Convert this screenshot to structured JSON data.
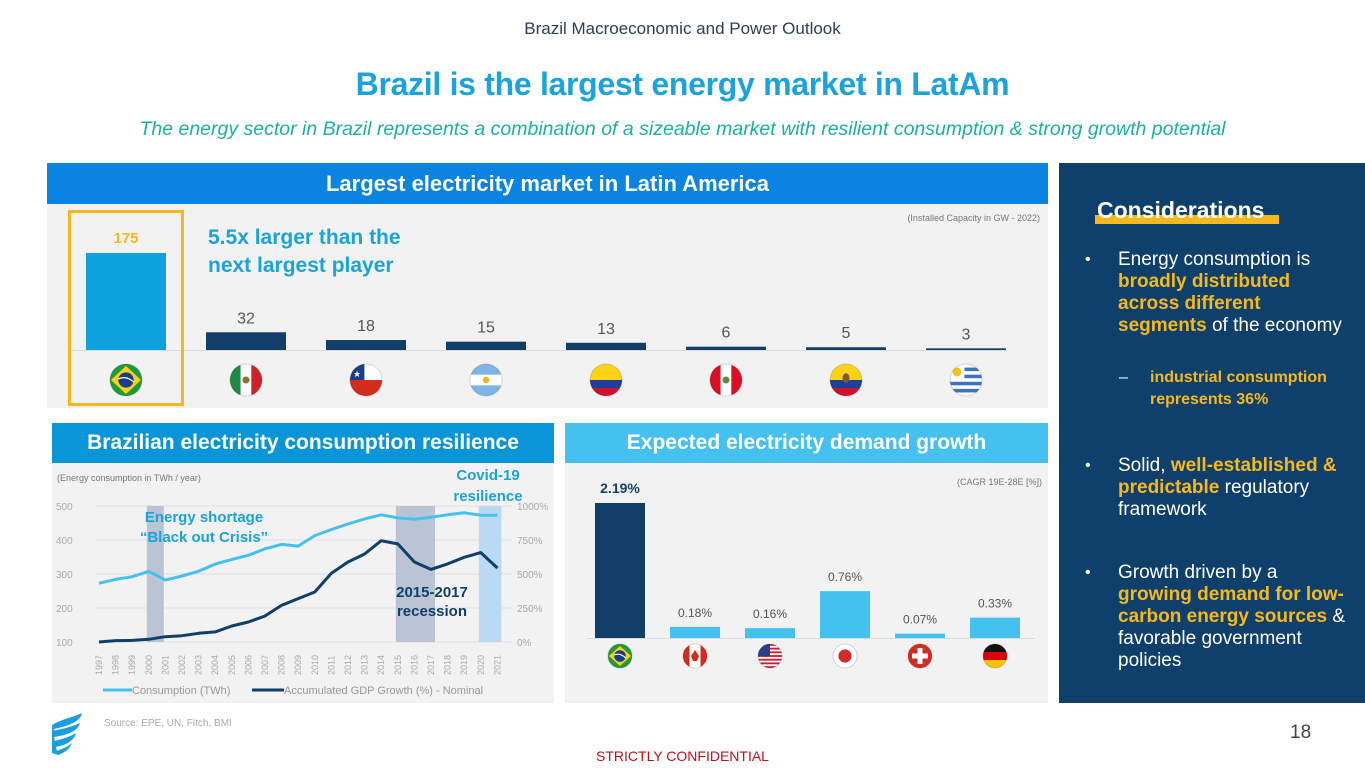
{
  "header": {
    "section": "Brazil Macroeconomic and Power Outlook",
    "title": "Brazil is the largest energy market in LatAm",
    "subtitle": "The energy sector in Brazil represents a combination of a sizeable market with resilient consumption & strong growth potential"
  },
  "colors": {
    "light_blue": "#1aa3dc",
    "dark_navy": "#0f3f6b",
    "accent_yellow": "#f7b81d",
    "bar_light": "#45c1f0",
    "bar_brazil_capacity": "#0ea1e0",
    "confidential_red": "#c0101a"
  },
  "panel_capacity": {
    "heading": "Largest electricity market in Latin America",
    "note": "(Installed Capacity in GW - 2022)",
    "claim_line1": "5.5x larger than the",
    "claim_line2": "next largest player"
  },
  "panel_consumption": {
    "heading": "Brazilian electricity consumption resilience",
    "note": "(Energy consumption in TWh / year)",
    "annot_shortage_1": "Energy shortage",
    "annot_shortage_2": "“Black out Crisis”",
    "annot_covid_1": "Covid-19",
    "annot_covid_2": "resilience",
    "annot_recession_1": "2015-2017",
    "annot_recession_2": "recession",
    "legend_consumption": "Consumption (TWh)",
    "legend_gdp": "Accumulated GDP Growth (%) - Nominal"
  },
  "panel_demand": {
    "heading": "Expected electricity demand growth",
    "note": "(CAGR 19E-28E [%])"
  },
  "considerations": {
    "title": "Considerations",
    "b1_plain1": "Energy consumption is ",
    "b1_hl": "broadly distributed across different segments",
    "b1_plain2": " of the economy",
    "sub1": "industrial consumption represents 36%",
    "b2_plain1": "Solid, ",
    "b2_hl": "well-established & predictable",
    "b2_plain2": " regulatory framework",
    "b3_plain1": "Growth driven by a ",
    "b3_hl": "growing demand for low-carbon energy sources",
    "b3_plain2": " & favorable government policies"
  },
  "footer": {
    "source": "Source: EPE, UN, Fitch, BMI",
    "page": "18",
    "confidential": "STRICTLY CONFIDENTIAL"
  },
  "chart_data": [
    {
      "type": "bar",
      "title": "Largest electricity market in Latin America",
      "ylabel": "Installed Capacity in GW - 2022",
      "categories": [
        "Brazil",
        "Mexico",
        "Chile",
        "Argentina",
        "Colombia",
        "Peru",
        "Ecuador",
        "Uruguay"
      ],
      "values": [
        175,
        32,
        18,
        15,
        13,
        6,
        5,
        3
      ],
      "labels": [
        "175",
        "32",
        "18",
        "15",
        "13",
        "6",
        "5",
        "3"
      ],
      "highlight": "Brazil",
      "flags": [
        "flag-brazil-icon",
        "flag-mexico-icon",
        "flag-chile-icon",
        "flag-argentina-icon",
        "flag-colombia-icon",
        "flag-peru-icon",
        "flag-ecuador-icon",
        "flag-uruguay-icon"
      ],
      "ylim": [
        0,
        175
      ]
    },
    {
      "type": "line",
      "title": "Brazilian electricity consumption resilience",
      "xlabel": "",
      "ylabel": "Energy consumption in TWh / year",
      "x": [
        "1997",
        "1998",
        "1999",
        "2000",
        "2001",
        "2002",
        "2003",
        "2004",
        "2005",
        "2006",
        "2007",
        "2008",
        "2009",
        "2010",
        "2011",
        "2012",
        "2013",
        "2014",
        "2015",
        "2016",
        "2017",
        "2018",
        "2019",
        "2020",
        "2021"
      ],
      "y_ticks": [
        "500",
        "400",
        "300",
        "200",
        "100"
      ],
      "y_ticks_values": [
        500,
        400,
        300,
        200,
        100
      ],
      "y2_ticks": [
        "1000%",
        "750%",
        "500%",
        "250%",
        "0%"
      ],
      "y2_ticks_values": [
        1000,
        750,
        500,
        250,
        0
      ],
      "ylim": [
        100,
        500
      ],
      "y2lim": [
        0,
        1000
      ],
      "series": [
        {
          "name": "Consumption (TWh)",
          "axis": "left",
          "color": "#45c1f0",
          "values": [
            273,
            284,
            292,
            308,
            282,
            294,
            308,
            329,
            343,
            355,
            374,
            387,
            382,
            413,
            431,
            447,
            462,
            474,
            465,
            461,
            467,
            474,
            480,
            473,
            473
          ]
        },
        {
          "name": "Accumulated GDP Growth (%) - Nominal",
          "axis": "right",
          "color": "#0f3f6b",
          "values": [
            0,
            10,
            12,
            20,
            39,
            46,
            64,
            74,
            118,
            147,
            191,
            270,
            319,
            368,
            505,
            588,
            647,
            745,
            721,
            588,
            534,
            574,
            623,
            657,
            544
          ]
        }
      ],
      "shaded_periods": [
        {
          "label": "Energy shortage “Black out Crisis”",
          "from": "2000",
          "to": "2001",
          "color": "#b4bfd2"
        },
        {
          "label": "2015-2017 recession",
          "from": "2015",
          "to": "2017",
          "color": "#b4bfd2"
        },
        {
          "label": "Covid-19 resilience",
          "from": "2020",
          "to": "2021",
          "color": "#b6d8f2"
        }
      ],
      "legend": "bottom",
      "grid": true
    },
    {
      "type": "bar",
      "title": "Expected electricity demand growth",
      "ylabel": "CAGR 19E-28E [%]",
      "categories": [
        "Brazil",
        "Canada",
        "United States",
        "Japan",
        "Switzerland",
        "Germany"
      ],
      "values": [
        2.19,
        0.18,
        0.16,
        0.76,
        0.07,
        0.33
      ],
      "labels": [
        "2.19%",
        "0.18%",
        "0.16%",
        "0.76%",
        "0.07%",
        "0.33%"
      ],
      "flags": [
        "flag-brazil-icon",
        "flag-canada-icon",
        "flag-usa-icon",
        "flag-japan-icon",
        "flag-switzerland-icon",
        "flag-germany-icon"
      ],
      "highlight": "Brazil",
      "ylim": [
        0,
        2.19
      ]
    }
  ]
}
